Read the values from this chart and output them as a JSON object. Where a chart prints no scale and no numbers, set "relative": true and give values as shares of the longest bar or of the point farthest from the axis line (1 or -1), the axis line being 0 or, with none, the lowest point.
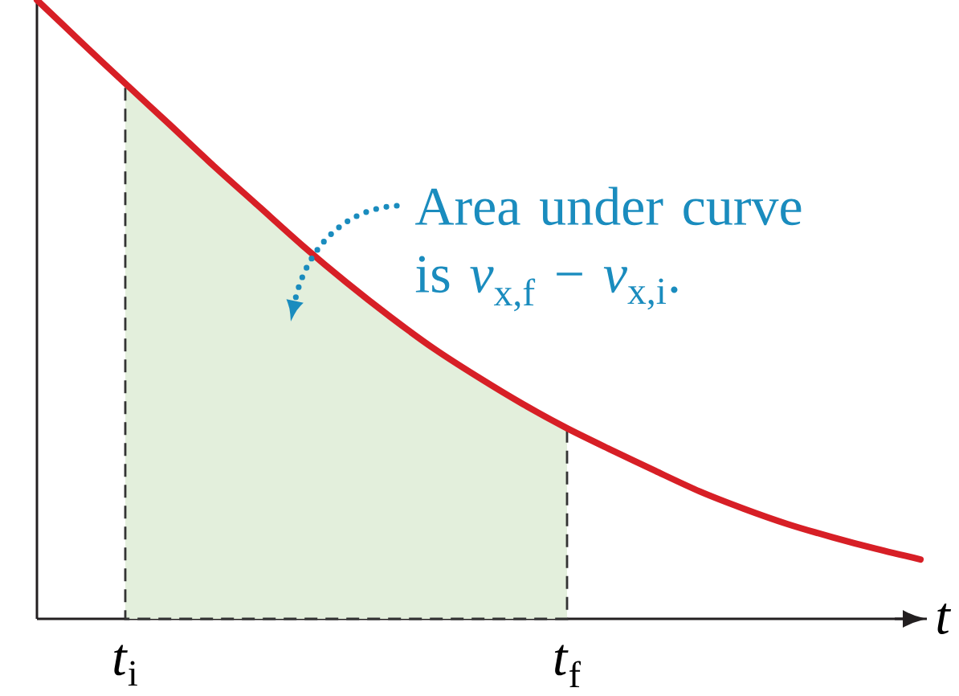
{
  "chart_data": {
    "type": "line",
    "relative": true,
    "xlabel": "t",
    "categories": [
      null,
      null,
      "*t*$_{i}$",
      null,
      null,
      null,
      null,
      null,
      null,
      null,
      null,
      null,
      "*t*$_{f}$",
      null,
      null,
      null,
      null,
      null,
      null,
      null,
      null
    ],
    "series": [
      {
        "type": "area",
        "color": "#e3efdc",
        "line_style": "dashed",
        "values": [
          null,
          null,
          0.865,
          0.799,
          0.732,
          0.668,
          0.604,
          0.544,
          0.488,
          0.436,
          0.39,
          0.347,
          0.308,
          null,
          null,
          null,
          null,
          null,
          null,
          null,
          null
        ]
      },
      {
        "color": "#d71f26",
        "values": [
          1,
          0.932,
          0.865,
          0.799,
          0.732,
          0.668,
          0.604,
          0.544,
          0.488,
          0.436,
          0.39,
          0.347,
          0.308,
          0.273,
          0.239,
          0.206,
          0.178,
          0.153,
          0.132,
          0.113,
          0.096
        ]
      }
    ],
    "annotations": [
      "Area under curve is *v*$_{x,f}$ − *v*$_{x,i}$."
    ]
  }
}
